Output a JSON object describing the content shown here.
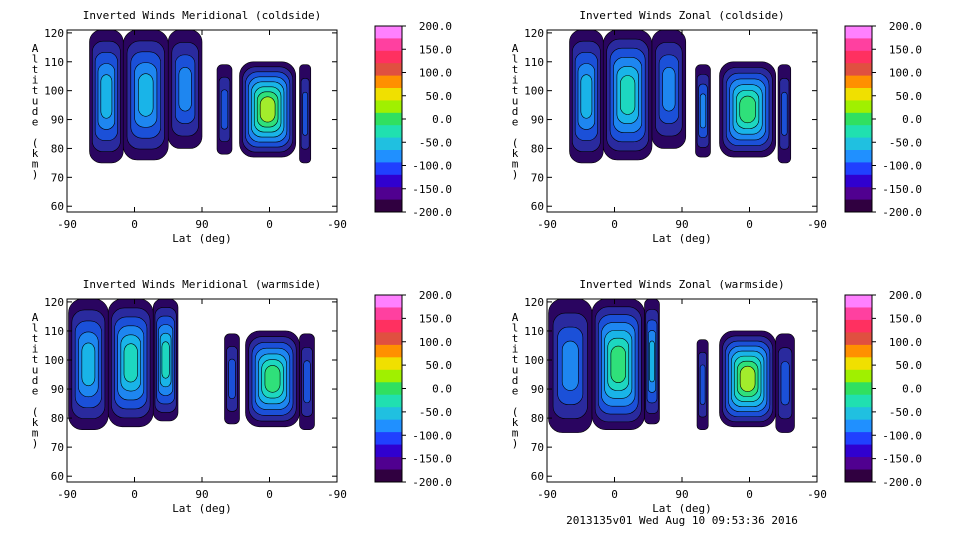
{
  "colorbar": {
    "levels": [
      "200.0",
      "150.0",
      "100.0",
      "50.0",
      "0.0",
      "-50.0",
      "-100.0",
      "-150.0",
      "-200.0"
    ],
    "colors": [
      "#ff80ff",
      "#ff40a0",
      "#ff3060",
      "#e05040",
      "#ff9000",
      "#f0e000",
      "#a0f000",
      "#30e060",
      "#20e0b0",
      "#20c0e0",
      "#2090ff",
      "#2040ff",
      "#3000d0",
      "#500090",
      "#300040"
    ]
  },
  "contour_colors": [
    "#2a0560",
    "#2a2a9e",
    "#1b50d8",
    "#1e86f0",
    "#19b4e8",
    "#1dd7c0",
    "#2fe07a",
    "#a2ec2c",
    "#f0e800",
    "#f0a000",
    "#d06020"
  ],
  "footer": "2013135v01 Wed Aug 10 09:53:36 2016",
  "chart_data": [
    {
      "type": "heatmap",
      "title": "Inverted Winds Meridional (coldside)",
      "xlabel": "Lat (deg)",
      "ylabel": "Altitude (km)",
      "xticks": [
        "-90",
        "0",
        "90",
        "0",
        "-90"
      ],
      "yticks": [
        "60",
        "70",
        "80",
        "90",
        "100",
        "110",
        "120"
      ],
      "ylim": [
        58,
        121
      ],
      "zlim": [
        -200,
        200
      ],
      "blocks": [
        {
          "x": [
            -60,
            -15
          ],
          "alt": [
            75,
            121
          ],
          "peak": -100
        },
        {
          "x": [
            -15,
            45
          ],
          "alt": [
            76,
            121
          ],
          "peak": -80
        },
        {
          "x": [
            45,
            90
          ],
          "alt": [
            80,
            121
          ],
          "peak": -110
        },
        {
          "x": [
            110,
            130
          ],
          "alt": [
            78,
            109
          ],
          "peak": -140
        },
        {
          "x": [
            140,
            215
          ],
          "alt": [
            77,
            110
          ],
          "peak": -10
        },
        {
          "x": [
            220,
            235
          ],
          "alt": [
            75,
            109
          ],
          "peak": -150
        }
      ]
    },
    {
      "type": "heatmap",
      "title": "Inverted Winds Zonal (coldside)",
      "xlabel": "Lat (deg)",
      "ylabel": "Altitude (km)",
      "xticks": [
        "-90",
        "0",
        "90",
        "0",
        "-90"
      ],
      "yticks": [
        "60",
        "70",
        "80",
        "90",
        "100",
        "110",
        "120"
      ],
      "ylim": [
        58,
        121
      ],
      "zlim": [
        -200,
        200
      ],
      "blocks": [
        {
          "x": [
            -60,
            -15
          ],
          "alt": [
            75,
            121
          ],
          "peak": -90
        },
        {
          "x": [
            -15,
            50
          ],
          "alt": [
            76,
            121
          ],
          "peak": -60
        },
        {
          "x": [
            50,
            95
          ],
          "alt": [
            80,
            121
          ],
          "peak": -120
        },
        {
          "x": [
            108,
            128
          ],
          "alt": [
            77,
            109
          ],
          "peak": -120
        },
        {
          "x": [
            140,
            215
          ],
          "alt": [
            77,
            110
          ],
          "peak": -30
        },
        {
          "x": [
            218,
            235
          ],
          "alt": [
            75,
            109
          ],
          "peak": -150
        }
      ]
    },
    {
      "type": "heatmap",
      "title": "Inverted Winds Meridional (warmside)",
      "xlabel": "Lat (deg)",
      "ylabel": "Altitude (km)",
      "xticks": [
        "-90",
        "0",
        "90",
        "0",
        "-90"
      ],
      "yticks": [
        "60",
        "70",
        "80",
        "90",
        "100",
        "110",
        "120"
      ],
      "ylim": [
        58,
        121
      ],
      "zlim": [
        -200,
        200
      ],
      "blocks": [
        {
          "x": [
            -88,
            -35
          ],
          "alt": [
            76,
            121
          ],
          "peak": -100
        },
        {
          "x": [
            -35,
            25
          ],
          "alt": [
            77,
            121
          ],
          "peak": -60
        },
        {
          "x": [
            25,
            58
          ],
          "alt": [
            79,
            121
          ],
          "peak": -70
        },
        {
          "x": [
            120,
            140
          ],
          "alt": [
            78,
            109
          ],
          "peak": -140
        },
        {
          "x": [
            148,
            220
          ],
          "alt": [
            77,
            110
          ],
          "peak": -20
        },
        {
          "x": [
            220,
            240
          ],
          "alt": [
            76,
            109
          ],
          "peak": -150
        }
      ]
    },
    {
      "type": "heatmap",
      "title": "Inverted Winds Zonal (warmside)",
      "xlabel": "Lat (deg)",
      "ylabel": "Altitude (km)",
      "xticks": [
        "-90",
        "0",
        "90",
        "0",
        "-90"
      ],
      "yticks": [
        "60",
        "70",
        "80",
        "90",
        "100",
        "110",
        "120"
      ],
      "ylim": [
        58,
        121
      ],
      "zlim": [
        -200,
        200
      ],
      "blocks": [
        {
          "x": [
            -88,
            -30
          ],
          "alt": [
            75,
            121
          ],
          "peak": -110
        },
        {
          "x": [
            -30,
            40
          ],
          "alt": [
            76,
            121
          ],
          "peak": -20
        },
        {
          "x": [
            40,
            60
          ],
          "alt": [
            78,
            121
          ],
          "peak": -90
        },
        {
          "x": [
            110,
            125
          ],
          "alt": [
            76,
            107
          ],
          "peak": -150
        },
        {
          "x": [
            140,
            215
          ],
          "alt": [
            77,
            110
          ],
          "peak": 10
        },
        {
          "x": [
            215,
            240
          ],
          "alt": [
            75,
            109
          ],
          "peak": -150
        }
      ]
    }
  ]
}
